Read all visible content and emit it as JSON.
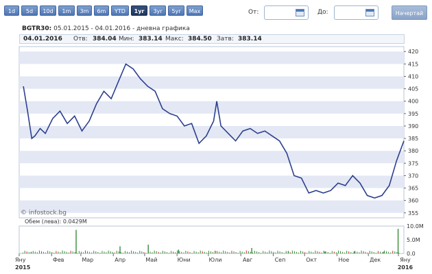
{
  "toolbar": {
    "periods": [
      "1d",
      "5d",
      "10d",
      "1m",
      "3m",
      "6m",
      "YTD",
      "1yr",
      "3yr",
      "5yr",
      "Max"
    ],
    "active_period": "1yr",
    "from_label": "От:",
    "from_value": "",
    "to_label": "До:",
    "to_value": "",
    "start_button": "Начертай"
  },
  "title": {
    "symbol": "BGTR30:",
    "range": "05.01.2015 - 04.01.2016 - дневна графика"
  },
  "infobar": {
    "date": "04.01.2016",
    "open_label": "Отв:",
    "open_value": "384.04",
    "min_label": "Мин:",
    "min_value": "383.14",
    "max_label": "Макс:",
    "max_value": "384.50",
    "close_label": "Затв:",
    "close_value": "383.14"
  },
  "watermark": "© infostock.bg",
  "volume_label": "Обем (лева): 0.0429M",
  "colors": {
    "line": "#2c3f8f",
    "band": "#e3e8f4",
    "volume": "#3a8a3a",
    "volume_alt": "#c83030",
    "accent": "#4f76b4"
  },
  "chart_data": [
    {
      "type": "line",
      "name": "price",
      "y_ticks": [
        355,
        360,
        365,
        370,
        375,
        380,
        385,
        390,
        395,
        400,
        405,
        410,
        415,
        420
      ],
      "ylim": [
        353,
        422
      ],
      "x_tick_labels": [
        "Яну\n2015",
        "Фев",
        "Мар",
        "Апр",
        "Май",
        "Юни",
        "Юли",
        "Авг",
        "Сеп",
        "Окт",
        "Ное",
        "Дек",
        "Яну\n2016"
      ],
      "x": [
        "2015-01-05",
        "2015-01-09",
        "2015-01-13",
        "2015-01-16",
        "2015-01-21",
        "2015-01-26",
        "2015-02-02",
        "2015-02-09",
        "2015-02-16",
        "2015-02-23",
        "2015-03-02",
        "2015-03-09",
        "2015-03-16",
        "2015-03-23",
        "2015-03-30",
        "2015-04-06",
        "2015-04-13",
        "2015-04-20",
        "2015-04-27",
        "2015-05-04",
        "2015-05-11",
        "2015-05-18",
        "2015-05-25",
        "2015-06-01",
        "2015-06-08",
        "2015-06-15",
        "2015-06-22",
        "2015-06-29",
        "2015-07-06",
        "2015-07-09",
        "2015-07-13",
        "2015-07-20",
        "2015-07-27",
        "2015-08-03",
        "2015-08-10",
        "2015-08-17",
        "2015-08-24",
        "2015-08-31",
        "2015-09-07",
        "2015-09-14",
        "2015-09-21",
        "2015-09-28",
        "2015-10-05",
        "2015-10-12",
        "2015-10-19",
        "2015-10-26",
        "2015-11-02",
        "2015-11-09",
        "2015-11-16",
        "2015-11-23",
        "2015-11-30",
        "2015-12-07",
        "2015-12-14",
        "2015-12-21",
        "2015-12-28",
        "2016-01-04"
      ],
      "y": [
        406,
        396,
        385,
        386,
        389,
        387,
        393,
        396,
        391,
        394,
        388,
        392,
        399,
        404,
        401,
        408,
        415,
        413,
        409,
        406,
        404,
        397,
        395,
        394,
        390,
        391,
        383,
        386,
        392,
        400,
        390,
        387,
        384,
        388,
        389,
        387,
        388,
        386,
        384,
        379,
        370,
        369,
        363,
        364,
        363,
        364,
        367,
        366,
        370,
        367,
        362,
        361,
        362,
        366,
        376,
        384
      ]
    },
    {
      "type": "bar",
      "name": "volume",
      "y_ticks_labels": [
        "0.0",
        "5.0M",
        "10.0M"
      ],
      "ylim": [
        0,
        10.0
      ],
      "x": [
        "2015-01-12",
        "2015-02-24",
        "2015-04-07",
        "2015-05-04",
        "2015-06-02",
        "2015-07-07",
        "2015-08-11",
        "2015-09-15",
        "2015-10-20",
        "2015-11-17",
        "2015-12-15",
        "2015-12-29"
      ],
      "values": [
        0.6,
        8.6,
        2.6,
        3.2,
        1.4,
        1.0,
        2.0,
        0.9,
        0.7,
        0.8,
        0.6,
        9.0
      ]
    }
  ]
}
